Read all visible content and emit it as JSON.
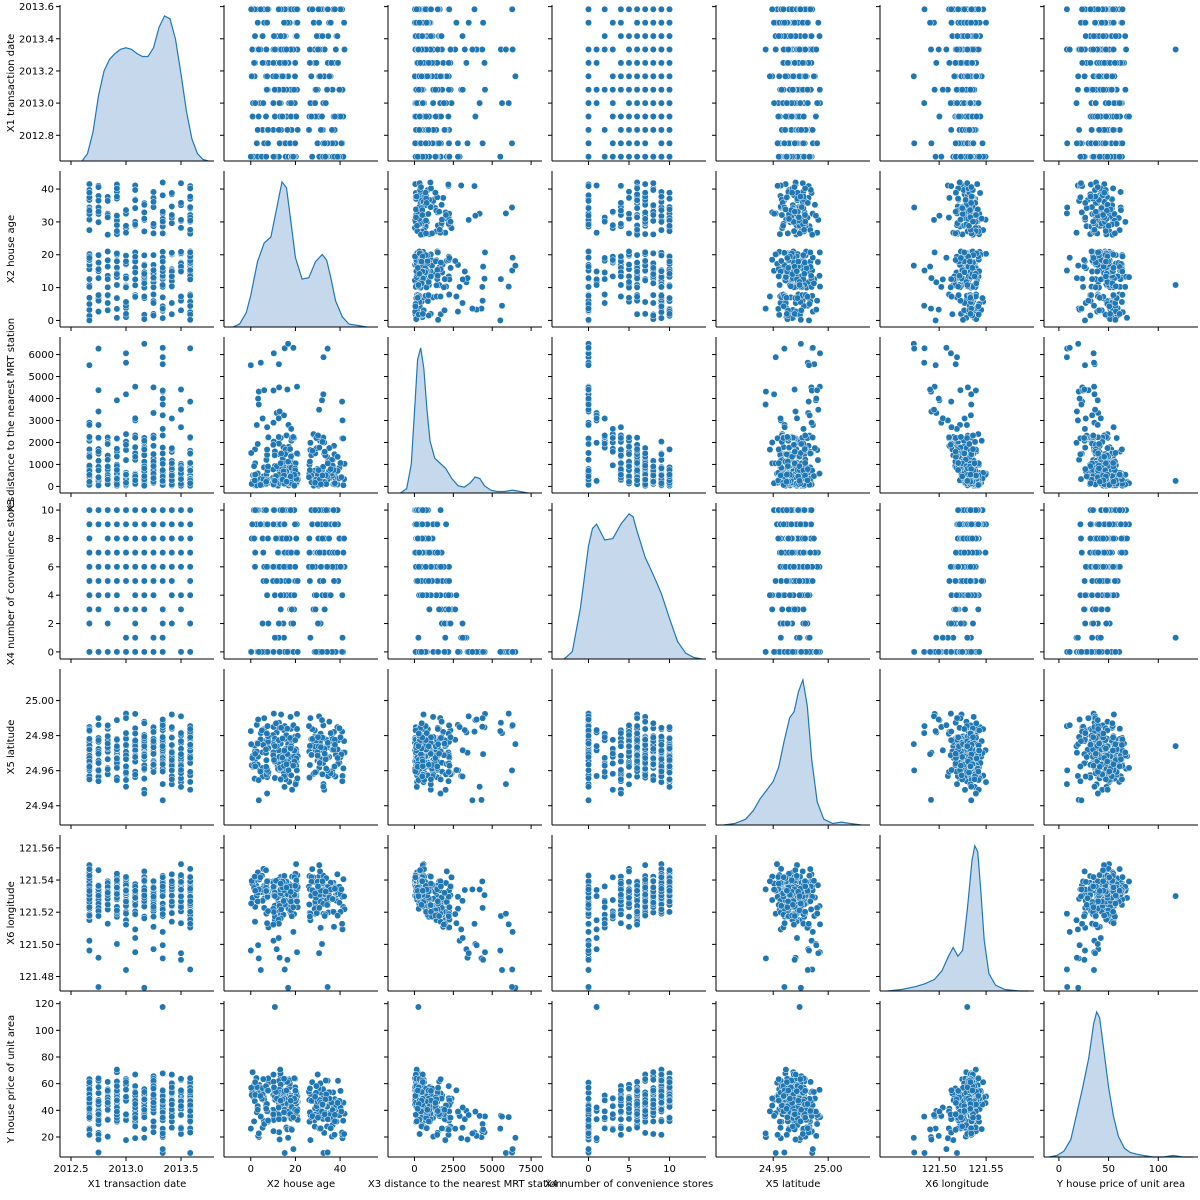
{
  "chart_data": {
    "type": "scatter",
    "subtype": "pairplot",
    "title": "",
    "grid": false,
    "legend": "none",
    "colors": {
      "point": "#1f77b4",
      "point_edge": "#ffffff",
      "kde_fill": "#c6d9ec",
      "kde_line": "#1f77b4"
    },
    "variables": [
      {
        "name": "X1 transaction date",
        "ticks": [
          2012.5,
          2013.0,
          2013.5
        ],
        "tick_labels": [
          "2012.5",
          "2013.0",
          "2013.5"
        ],
        "y_ticks": [
          2012.8,
          2013.0,
          2013.2,
          2013.4,
          2013.6
        ],
        "y_tick_labels": [
          "2012.8",
          "2013.0",
          "2013.2",
          "2013.4",
          "2013.6"
        ],
        "x_range": [
          2012.4,
          2013.8
        ],
        "y_range": [
          2012.64,
          2013.61
        ],
        "mean": 2013.15,
        "sd": 0.28
      },
      {
        "name": "X2 house age",
        "ticks": [
          0,
          20,
          40
        ],
        "tick_labels": [
          "0",
          "20",
          "40"
        ],
        "y_ticks": [
          0,
          10,
          20,
          30,
          40
        ],
        "y_tick_labels": [
          "0",
          "10",
          "20",
          "30",
          "40"
        ],
        "x_range": [
          -12,
          57
        ],
        "y_range": [
          -2,
          45.5
        ],
        "mean": 17.7,
        "sd": 11.4
      },
      {
        "name": "X3 distance to the nearest MRT station",
        "ticks": [
          0,
          2500,
          5000,
          7500
        ],
        "tick_labels": [
          "0",
          "2500",
          "5000",
          "7500"
        ],
        "y_ticks": [
          0,
          1000,
          2000,
          3000,
          4000,
          5000,
          6000
        ],
        "y_tick_labels": [
          "0",
          "1000",
          "2000",
          "3000",
          "4000",
          "5000",
          "6000"
        ],
        "x_range": [
          -1700,
          8200
        ],
        "y_range": [
          -300,
          6800
        ],
        "mean": 1083,
        "sd": 1262
      },
      {
        "name": "X4 number of convenience stores",
        "ticks": [
          0,
          5,
          10
        ],
        "tick_labels": [
          "0",
          "5",
          "10"
        ],
        "y_ticks": [
          0,
          2,
          4,
          6,
          8,
          10
        ],
        "y_tick_labels": [
          "0",
          "2",
          "4",
          "6",
          "8",
          "10"
        ],
        "x_range": [
          -4.5,
          14.5
        ],
        "y_range": [
          -0.5,
          10.5
        ],
        "mean": 4.1,
        "sd": 2.9
      },
      {
        "name": "X5 latitude",
        "ticks": [
          24.95,
          25.0
        ],
        "tick_labels": [
          "24.95",
          "25.00"
        ],
        "y_ticks": [
          24.94,
          24.96,
          24.98,
          25.0
        ],
        "y_tick_labels": [
          "24.94",
          "24.96",
          "24.98",
          "25.00"
        ],
        "x_range": [
          24.898,
          25.038
        ],
        "y_range": [
          24.929,
          25.018
        ],
        "mean": 24.969,
        "sd": 0.012
      },
      {
        "name": "X6 longitude",
        "ticks": [
          121.5,
          121.55
        ],
        "tick_labels": [
          "121.50",
          "121.55"
        ],
        "y_ticks": [
          121.48,
          121.5,
          121.52,
          121.54,
          121.56
        ],
        "y_tick_labels": [
          "121.48",
          "121.50",
          "121.52",
          "121.54",
          "121.56"
        ],
        "x_range": [
          121.437,
          121.601
        ],
        "y_range": [
          121.471,
          121.568
        ],
        "mean": 121.534,
        "sd": 0.015
      },
      {
        "name": "Y house price of unit area",
        "ticks": [
          0,
          50,
          100
        ],
        "tick_labels": [
          "0",
          "50",
          "100"
        ],
        "y_ticks": [
          20,
          40,
          60,
          80,
          100,
          120
        ],
        "y_tick_labels": [
          "20",
          "40",
          "60",
          "80",
          "100",
          "120"
        ],
        "x_range": [
          -15,
          140
        ],
        "y_range": [
          5,
          122
        ],
        "mean": 38,
        "sd": 13.6
      }
    ],
    "kde": [
      {
        "var": "X1 transaction date",
        "x": [
          2012.6,
          2012.65,
          2012.7,
          2012.75,
          2012.8,
          2012.85,
          2012.9,
          2012.95,
          2013.0,
          2013.05,
          2013.1,
          2013.15,
          2013.2,
          2013.25,
          2013.3,
          2013.35,
          2013.4,
          2013.45,
          2013.5,
          2013.55,
          2013.6,
          2013.65,
          2013.7,
          2013.75
        ],
        "y": [
          0.0,
          0.05,
          0.2,
          0.45,
          0.62,
          0.7,
          0.74,
          0.77,
          0.78,
          0.77,
          0.74,
          0.72,
          0.72,
          0.78,
          0.92,
          1.0,
          0.98,
          0.84,
          0.6,
          0.34,
          0.15,
          0.05,
          0.01,
          0.0
        ]
      },
      {
        "var": "X2 house age",
        "x": [
          -8,
          -5,
          -2,
          0,
          3,
          6,
          9,
          12,
          14,
          16,
          18,
          20,
          23,
          26,
          29,
          32,
          34,
          36,
          38,
          41,
          44,
          48,
          52
        ],
        "y": [
          0.0,
          0.02,
          0.1,
          0.22,
          0.45,
          0.58,
          0.62,
          0.85,
          1.0,
          0.96,
          0.72,
          0.48,
          0.33,
          0.34,
          0.45,
          0.5,
          0.46,
          0.33,
          0.18,
          0.07,
          0.02,
          0.01,
          0.0
        ]
      },
      {
        "var": "X3 distance to the nearest MRT station",
        "x": [
          -900,
          -500,
          -200,
          0,
          200,
          400,
          600,
          800,
          1000,
          1300,
          1600,
          2000,
          2400,
          2800,
          3200,
          3600,
          3900,
          4200,
          4500,
          4900,
          5300,
          5800,
          6300,
          6800,
          7300
        ],
        "y": [
          0.0,
          0.03,
          0.2,
          0.55,
          0.92,
          1.0,
          0.86,
          0.58,
          0.36,
          0.24,
          0.21,
          0.17,
          0.1,
          0.05,
          0.04,
          0.07,
          0.11,
          0.1,
          0.05,
          0.02,
          0.01,
          0.01,
          0.02,
          0.01,
          0.0
        ]
      },
      {
        "var": "X4 number of convenience stores",
        "x": [
          -3,
          -2,
          -1,
          0,
          0.5,
          1,
          2,
          3,
          4,
          5,
          5.5,
          6,
          7,
          8,
          9,
          10,
          11,
          12,
          13,
          14
        ],
        "y": [
          0.0,
          0.05,
          0.35,
          0.78,
          0.9,
          0.93,
          0.82,
          0.83,
          0.93,
          1.0,
          0.98,
          0.88,
          0.7,
          0.58,
          0.45,
          0.28,
          0.12,
          0.04,
          0.01,
          0.0
        ]
      },
      {
        "var": "X5 latitude",
        "x": [
          24.905,
          24.915,
          24.925,
          24.932,
          24.938,
          24.944,
          24.95,
          24.955,
          24.96,
          24.965,
          24.969,
          24.973,
          24.977,
          24.981,
          24.985,
          24.99,
          24.996,
          25.004,
          25.012,
          25.02,
          25.03
        ],
        "y": [
          0.0,
          0.01,
          0.04,
          0.1,
          0.18,
          0.24,
          0.3,
          0.4,
          0.58,
          0.74,
          0.78,
          0.92,
          1.0,
          0.82,
          0.45,
          0.16,
          0.04,
          0.01,
          0.02,
          0.01,
          0.0
        ]
      },
      {
        "var": "X6 longitude",
        "x": [
          121.445,
          121.46,
          121.475,
          121.485,
          121.495,
          121.503,
          121.51,
          121.515,
          121.52,
          121.525,
          121.53,
          121.535,
          121.538,
          121.541,
          121.544,
          121.548,
          121.553,
          121.56,
          121.57,
          121.585,
          121.595
        ],
        "y": [
          0.0,
          0.01,
          0.03,
          0.05,
          0.08,
          0.14,
          0.24,
          0.3,
          0.24,
          0.28,
          0.56,
          0.9,
          1.0,
          0.96,
          0.72,
          0.35,
          0.12,
          0.04,
          0.01,
          0.0,
          0.0
        ]
      },
      {
        "var": "Y house price of unit area",
        "x": [
          -10,
          -2,
          5,
          12,
          18,
          24,
          30,
          35,
          38,
          41,
          45,
          50,
          55,
          60,
          66,
          72,
          78,
          85,
          95,
          105,
          115,
          125,
          135
        ],
        "y": [
          0.0,
          0.01,
          0.04,
          0.12,
          0.3,
          0.48,
          0.68,
          0.92,
          1.0,
          0.96,
          0.75,
          0.48,
          0.28,
          0.14,
          0.06,
          0.03,
          0.02,
          0.01,
          0.0,
          0.0,
          0.01,
          0.0,
          0.0
        ]
      }
    ]
  }
}
